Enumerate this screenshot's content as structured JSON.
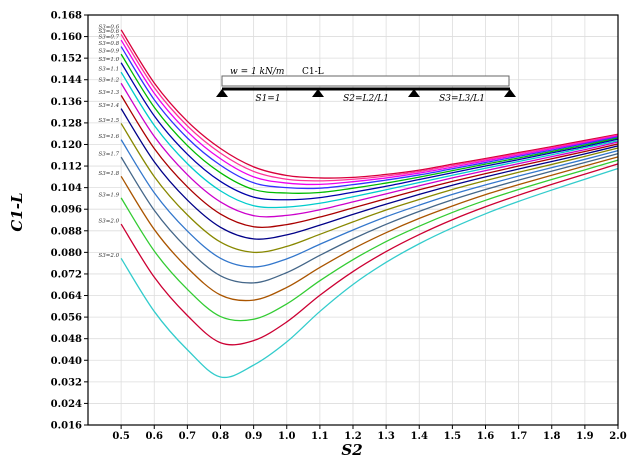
{
  "chart_data": {
    "type": "line",
    "title": "",
    "xlabel": "S2",
    "ylabel": "C1-L",
    "xlim": [
      0.4,
      2.0
    ],
    "ylim": [
      0.016,
      0.168
    ],
    "x_ticks": [
      "0.5",
      "0.6",
      "0.7",
      "0.8",
      "0.9",
      "1.0",
      "1.1",
      "1.2",
      "1.3",
      "1.4",
      "1.5",
      "1.6",
      "1.7",
      "1.8",
      "1.9",
      "2.0"
    ],
    "y_ticks": [
      "0.016",
      "0.024",
      "0.032",
      "0.040",
      "0.048",
      "0.056",
      "0.064",
      "0.072",
      "0.080",
      "0.088",
      "0.096",
      "0.104",
      "0.112",
      "0.120",
      "0.128",
      "0.136",
      "0.144",
      "0.152",
      "0.160",
      "0.168"
    ],
    "grid": true,
    "x": [
      0.5,
      0.6,
      0.7,
      0.8,
      0.9,
      1.0,
      1.1,
      1.2,
      1.3,
      1.4,
      1.5,
      1.6,
      1.7,
      1.8,
      1.9,
      2.0
    ],
    "series": [
      {
        "name": "S3=0.6",
        "color": "#d8003a",
        "values": [
          0.1625,
          0.1428,
          0.1286,
          0.1185,
          0.1117,
          0.1085,
          0.1076,
          0.1078,
          0.1089,
          0.1105,
          0.1127,
          0.1148,
          0.117,
          0.1192,
          0.1215,
          0.1238
        ]
      },
      {
        "name": "S3=0.6",
        "color": "#ff3399",
        "values": [
          0.1608,
          0.1411,
          0.1269,
          0.1168,
          0.11,
          0.1071,
          0.1065,
          0.1071,
          0.1083,
          0.11,
          0.1122,
          0.1144,
          0.1166,
          0.1188,
          0.1211,
          0.1235
        ]
      },
      {
        "name": "S3=0.7",
        "color": "#ee00ee",
        "values": [
          0.1587,
          0.139,
          0.1248,
          0.1147,
          0.108,
          0.1057,
          0.1052,
          0.1062,
          0.1076,
          0.1094,
          0.1116,
          0.1139,
          0.1161,
          0.1184,
          0.1207,
          0.1232
        ]
      },
      {
        "name": "S3=0.8",
        "color": "#3333ff",
        "values": [
          0.1563,
          0.1366,
          0.1224,
          0.1123,
          0.1058,
          0.104,
          0.1038,
          0.1051,
          0.1068,
          0.1087,
          0.111,
          0.1133,
          0.1156,
          0.1179,
          0.1203,
          0.1228
        ]
      },
      {
        "name": "S3=0.9",
        "color": "#00bb00",
        "values": [
          0.1535,
          0.1338,
          0.1196,
          0.1095,
          0.1033,
          0.102,
          0.1022,
          0.1038,
          0.1057,
          0.1079,
          0.1103,
          0.1127,
          0.115,
          0.1174,
          0.1198,
          0.1224
        ]
      },
      {
        "name": "S3=1.0",
        "color": "#0000aa",
        "values": [
          0.1503,
          0.1306,
          0.1164,
          0.1063,
          0.1005,
          0.0995,
          0.1003,
          0.1023,
          0.1045,
          0.107,
          0.1095,
          0.112,
          0.1144,
          0.1169,
          0.1193,
          0.122
        ]
      },
      {
        "name": "S3=1.1",
        "color": "#00cccc",
        "values": [
          0.1468,
          0.1271,
          0.1129,
          0.1028,
          0.0973,
          0.0968,
          0.0982,
          0.1006,
          0.1032,
          0.1059,
          0.1086,
          0.1112,
          0.1137,
          0.1162,
          0.1188,
          0.1214
        ]
      },
      {
        "name": "S3=1.2",
        "color": "#cc00cc",
        "values": [
          0.1427,
          0.123,
          0.1088,
          0.0987,
          0.0936,
          0.0937,
          0.0958,
          0.0987,
          0.1017,
          0.1047,
          0.1076,
          0.1103,
          0.1129,
          0.1155,
          0.1181,
          0.1209
        ]
      },
      {
        "name": "S3=1.3",
        "color": "#aa0000",
        "values": [
          0.1382,
          0.1185,
          0.1043,
          0.0942,
          0.0895,
          0.0903,
          0.0931,
          0.0965,
          0.0999,
          0.1032,
          0.1063,
          0.1092,
          0.112,
          0.1147,
          0.1174,
          0.1202
        ]
      },
      {
        "name": "S3=1.4",
        "color": "#000088",
        "values": [
          0.1333,
          0.1136,
          0.0994,
          0.0893,
          0.085,
          0.0865,
          0.0901,
          0.0941,
          0.0979,
          0.1015,
          0.1049,
          0.108,
          0.1109,
          0.1137,
          0.1165,
          0.1195
        ]
      },
      {
        "name": "S3=1.5",
        "color": "#888800",
        "values": [
          0.1278,
          0.1081,
          0.0939,
          0.0838,
          0.08,
          0.0822,
          0.0867,
          0.0913,
          0.0957,
          0.0996,
          0.1033,
          0.1066,
          0.1097,
          0.1126,
          0.1156,
          0.1187
        ]
      },
      {
        "name": "S3=1.6",
        "color": "#3377cc",
        "values": [
          0.1218,
          0.1021,
          0.0879,
          0.0778,
          0.0746,
          0.0776,
          0.083,
          0.0883,
          0.0932,
          0.0975,
          0.1015,
          0.105,
          0.1083,
          0.1114,
          0.1145,
          0.1177
        ]
      },
      {
        "name": "S3=1.7",
        "color": "#446688",
        "values": [
          0.1153,
          0.0956,
          0.0814,
          0.0713,
          0.0687,
          0.0725,
          0.0789,
          0.085,
          0.0904,
          0.0952,
          0.0995,
          0.1033,
          0.1068,
          0.1101,
          0.1133,
          0.1166
        ]
      },
      {
        "name": "S3=1.8",
        "color": "#aa5500",
        "values": [
          0.1082,
          0.0885,
          0.0743,
          0.0642,
          0.0623,
          0.067,
          0.0744,
          0.0813,
          0.0873,
          0.0926,
          0.0972,
          0.1014,
          0.1051,
          0.1086,
          0.112,
          0.1154
        ]
      },
      {
        "name": "S3=1.9",
        "color": "#33cc33",
        "values": [
          0.1002,
          0.0805,
          0.0663,
          0.0562,
          0.0552,
          0.0609,
          0.0695,
          0.0773,
          0.084,
          0.0897,
          0.0948,
          0.0993,
          0.1033,
          0.107,
          0.1106,
          0.1142
        ]
      },
      {
        "name": "S3=2.0",
        "color": "#cc0033",
        "values": [
          0.0905,
          0.0708,
          0.0566,
          0.0465,
          0.0473,
          0.0542,
          0.0641,
          0.0729,
          0.0803,
          0.0866,
          0.0921,
          0.0969,
          0.1012,
          0.1052,
          0.109,
          0.1128
        ]
      },
      {
        "name": "S3=2.0",
        "color": "#33cccc",
        "values": [
          0.0778,
          0.0581,
          0.0439,
          0.0338,
          0.0382,
          0.0468,
          0.0581,
          0.0681,
          0.0763,
          0.0832,
          0.0891,
          0.0943,
          0.0989,
          0.1031,
          0.1071,
          0.1111
        ]
      }
    ],
    "inset": {
      "load_label": "w = 1 kN/m",
      "beam_label": "C1-L",
      "span_labels": [
        "S1=1",
        "S2=L2/L1",
        "S3=L3/L1"
      ]
    }
  },
  "colors": {
    "grid": "#dddddd",
    "axis": "#000000",
    "inset_beam_label": "#dd2222"
  }
}
